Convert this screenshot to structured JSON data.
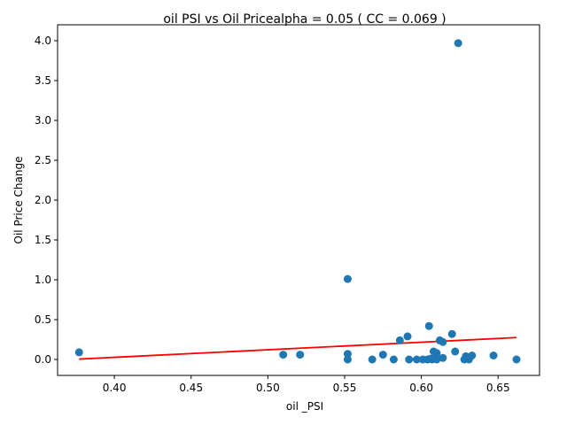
{
  "chart_data": {
    "type": "scatter",
    "title": "oil  PSI vs Oil Pricealpha = 0.05 ( CC = 0.069 )",
    "xlabel": "oil _PSI",
    "ylabel": "Oil Price Change",
    "xlim": [
      0.363,
      0.677
    ],
    "ylim": [
      -0.2,
      4.2
    ],
    "xticks": [
      0.4,
      0.45,
      0.5,
      0.55,
      0.6,
      0.65
    ],
    "xtick_labels": [
      "0.40",
      "0.45",
      "0.50",
      "0.55",
      "0.60",
      "0.65"
    ],
    "yticks": [
      0.0,
      0.5,
      1.0,
      1.5,
      2.0,
      2.5,
      3.0,
      3.5,
      4.0
    ],
    "ytick_labels": [
      "0.0",
      "0.5",
      "1.0",
      "1.5",
      "2.0",
      "2.5",
      "3.0",
      "3.5",
      "4.0"
    ],
    "grid": false,
    "point_color": "#1f77b4",
    "line_color": "#ff0000",
    "points": [
      {
        "x": 0.377,
        "y": 0.09
      },
      {
        "x": 0.51,
        "y": 0.06
      },
      {
        "x": 0.521,
        "y": 0.06
      },
      {
        "x": 0.552,
        "y": 1.01
      },
      {
        "x": 0.552,
        "y": 0.07
      },
      {
        "x": 0.552,
        "y": 0.0
      },
      {
        "x": 0.568,
        "y": 0.0
      },
      {
        "x": 0.575,
        "y": 0.06
      },
      {
        "x": 0.582,
        "y": 0.0
      },
      {
        "x": 0.586,
        "y": 0.24
      },
      {
        "x": 0.591,
        "y": 0.29
      },
      {
        "x": 0.592,
        "y": 0.0
      },
      {
        "x": 0.597,
        "y": 0.0
      },
      {
        "x": 0.601,
        "y": 0.0
      },
      {
        "x": 0.604,
        "y": 0.0
      },
      {
        "x": 0.605,
        "y": 0.42
      },
      {
        "x": 0.606,
        "y": 0.01
      },
      {
        "x": 0.607,
        "y": 0.0
      },
      {
        "x": 0.608,
        "y": 0.1
      },
      {
        "x": 0.609,
        "y": 0.01
      },
      {
        "x": 0.61,
        "y": 0.0
      },
      {
        "x": 0.61,
        "y": 0.08
      },
      {
        "x": 0.612,
        "y": 0.24
      },
      {
        "x": 0.614,
        "y": 0.22
      },
      {
        "x": 0.614,
        "y": 0.02
      },
      {
        "x": 0.62,
        "y": 0.32
      },
      {
        "x": 0.622,
        "y": 0.1
      },
      {
        "x": 0.624,
        "y": 3.97
      },
      {
        "x": 0.628,
        "y": 0.0
      },
      {
        "x": 0.629,
        "y": 0.04
      },
      {
        "x": 0.631,
        "y": 0.0
      },
      {
        "x": 0.633,
        "y": 0.05
      },
      {
        "x": 0.647,
        "y": 0.05
      },
      {
        "x": 0.662,
        "y": 0.0
      }
    ],
    "fit_line": {
      "x": [
        0.377,
        0.662
      ],
      "y": [
        0.005,
        0.275
      ]
    }
  }
}
